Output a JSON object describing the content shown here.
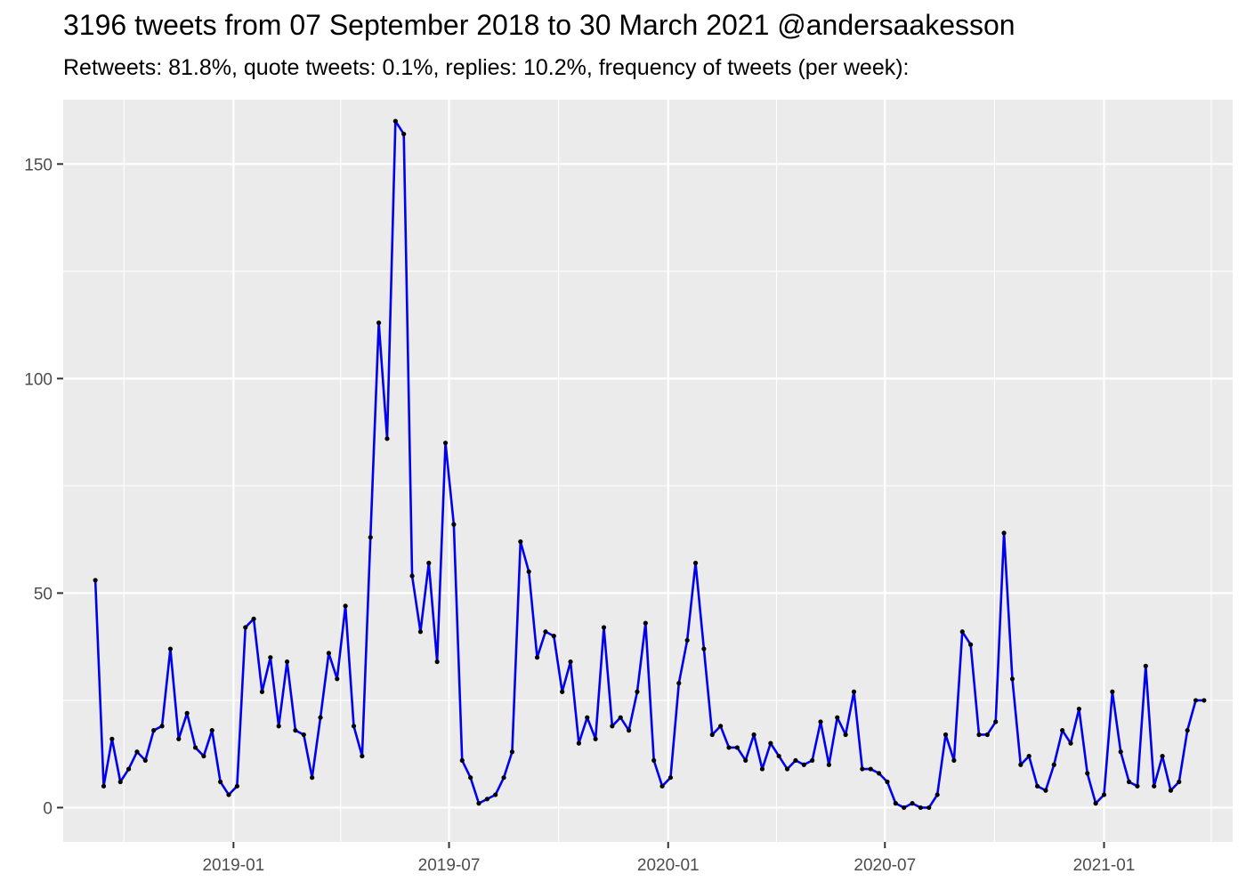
{
  "title": "3196 tweets from 07 September 2018 to 30 March 2021 @andersaakesson",
  "subtitle": "Retweets: 81.8%, quote tweets: 0.1%, replies: 10.2%, frequency of tweets (per week):",
  "colors": {
    "line": "#0000ee",
    "point": "#000000",
    "panel": "#ebebeb",
    "grid": "#ffffff",
    "tick_text": "#4d4d4d"
  },
  "chart_data": {
    "type": "line",
    "title": "3196 tweets from 07 September 2018 to 30 March 2021 @andersaakesson",
    "subtitle": "Retweets: 81.8%, quote tweets: 0.1%, replies: 10.2%, frequency of tweets (per week):",
    "xlabel": "",
    "ylabel": "",
    "grid": true,
    "legend": "none",
    "x_type": "date",
    "xlim": [
      "2018-08-11",
      "2021-04-19"
    ],
    "ylim": [
      -8,
      165
    ],
    "y_ticks": [
      0,
      50,
      100,
      150
    ],
    "x_ticks": [
      {
        "date": "2019-01-01",
        "label": "2019-01"
      },
      {
        "date": "2019-07-01",
        "label": "2019-07"
      },
      {
        "date": "2020-01-01",
        "label": "2020-01"
      },
      {
        "date": "2020-07-01",
        "label": "2020-07"
      },
      {
        "date": "2021-01-01",
        "label": "2021-01"
      }
    ],
    "x_minor_ticks": [
      "2018-10-01",
      "2019-04-01",
      "2019-10-01",
      "2020-04-01",
      "2020-10-01",
      "2021-04-01"
    ],
    "series": [
      {
        "x_start": "2018-09-07",
        "x_step_days": 7,
        "values": [
          53,
          5,
          16,
          6,
          9,
          13,
          11,
          18,
          19,
          37,
          16,
          22,
          14,
          12,
          18,
          6,
          3,
          5,
          42,
          44,
          27,
          35,
          19,
          34,
          18,
          17,
          7,
          21,
          36,
          30,
          47,
          19,
          12,
          63,
          113,
          86,
          160,
          157,
          54,
          41,
          57,
          34,
          85,
          66,
          11,
          7,
          1,
          2,
          3,
          7,
          13,
          62,
          55,
          35,
          41,
          40,
          27,
          34,
          15,
          21,
          16,
          42,
          19,
          21,
          18,
          27,
          43,
          11,
          5,
          7,
          29,
          39,
          57,
          37,
          17,
          19,
          14,
          14,
          11,
          17,
          9,
          15,
          12,
          9,
          11,
          10,
          11,
          20,
          10,
          21,
          17,
          27,
          9,
          9,
          8,
          6,
          1,
          0,
          1,
          0,
          0,
          3,
          17,
          11,
          41,
          38,
          17,
          17,
          20,
          64,
          30,
          10,
          12,
          5,
          4,
          10,
          18,
          15,
          23,
          8,
          1,
          3,
          27,
          13,
          6,
          5,
          33,
          5,
          12,
          4,
          6,
          18,
          25,
          25
        ]
      }
    ]
  }
}
